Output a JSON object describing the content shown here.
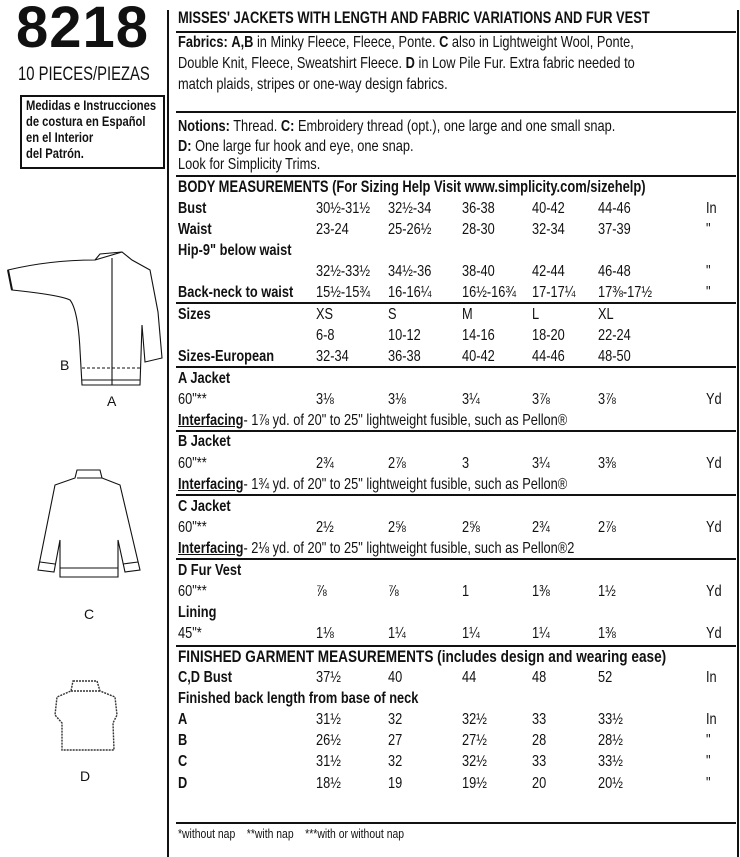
{
  "pattern_number": "8218",
  "pieces": "10 PIECES/PIEZAS",
  "spanish_note": [
    "Medidas e Instrucciones",
    "de costura en Español",
    "en el Interior",
    "del Patrón."
  ],
  "figure_labels": {
    "a": "A",
    "b": "B",
    "c": "C",
    "d": "D"
  },
  "title": "MISSES' JACKETS WITH LENGTH AND FABRIC VARIATIONS AND FUR VEST",
  "fabrics": {
    "label": "Fabrics:",
    "line1_b1": "A,B",
    "line1_t1": " in Minky Fleece, Fleece, Ponte. ",
    "line1_b2": "C",
    "line1_t2": " also in Lightweight Wool, Ponte,",
    "line2_t1": "Double Knit, Fleece, Sweatshirt Fleece. ",
    "line2_b1": "D",
    "line2_t2": " in Low Pile Fur. Extra fabric needed to",
    "line3": "match plaids, stripes or one-way design fabrics."
  },
  "notions": {
    "label": "Notions:",
    "t1": " Thread. ",
    "b1": "C:",
    "t2": " Embroidery thread (opt.), one large and one small snap.",
    "line2_b": "D:",
    "line2_t": " One large fur hook and eye, one snap.",
    "line3": "Look for Simplicity Trims."
  },
  "body_heading": "BODY MEASUREMENTS (For Sizing Help Visit www.simplicity.com/sizehelp)",
  "rows": [
    {
      "label": "Bust",
      "bold": true,
      "values": [
        "30½-31½",
        "32½-34",
        "36-38",
        "40-42",
        "44-46"
      ],
      "unit": "In"
    },
    {
      "label": "Waist",
      "bold": true,
      "values": [
        "23-24",
        "25-26½",
        "28-30",
        "32-34",
        "37-39"
      ],
      "unit": "\""
    },
    {
      "label": "Hip-9\" below waist",
      "bold": true,
      "values": [],
      "unit": ""
    },
    {
      "label": "",
      "bold": false,
      "values": [
        "32½-33½",
        "34½-36",
        "38-40",
        "42-44",
        "46-48"
      ],
      "unit": "\""
    },
    {
      "label": "Back-neck to waist",
      "bold": true,
      "values": [
        "15½-15¾",
        "16-16¼",
        "16½-16¾",
        "17-17¼",
        "17⅜-17½"
      ],
      "unit": "\""
    },
    {
      "label": "Sizes",
      "bold": true,
      "values": [
        "XS",
        "S",
        "M",
        "L",
        "XL"
      ],
      "unit": ""
    },
    {
      "label": "",
      "bold": false,
      "values": [
        "6-8",
        "10-12",
        "14-16",
        "18-20",
        "22-24"
      ],
      "unit": ""
    },
    {
      "label": "Sizes-European",
      "bold": true,
      "values": [
        "32-34",
        "36-38",
        "40-42",
        "44-46",
        "48-50"
      ],
      "unit": ""
    },
    {
      "label": "A Jacket",
      "bold": true,
      "values": [],
      "unit": ""
    },
    {
      "label": "60\"**",
      "bold": false,
      "values": [
        "3⅛",
        "3⅛",
        "3¼",
        "3⅞",
        "3⅞"
      ],
      "unit": "Yd"
    },
    {
      "label": "Interfacing",
      "bold": true,
      "note": "- 1⅞ yd. of 20\" to 25\" lightweight fusible, such as Pellon®",
      "values": [],
      "unit": ""
    },
    {
      "label": "B Jacket",
      "bold": true,
      "values": [],
      "unit": ""
    },
    {
      "label": "60\"**",
      "bold": false,
      "values": [
        "2¾",
        "2⅞",
        "3",
        "3¼",
        "3⅜"
      ],
      "unit": "Yd"
    },
    {
      "label": "Interfacing",
      "bold": true,
      "note": "- 1¾ yd. of 20\" to 25\" lightweight fusible, such as Pellon®",
      "values": [],
      "unit": ""
    },
    {
      "label": "C Jacket",
      "bold": true,
      "values": [],
      "unit": ""
    },
    {
      "label": "60\"**",
      "bold": false,
      "values": [
        "2½",
        "2⅝",
        "2⅝",
        "2¾",
        "2⅞"
      ],
      "unit": "Yd"
    },
    {
      "label": "Interfacing",
      "bold": true,
      "note": "- 2⅛ yd. of 20\" to 25\" lightweight fusible, such as Pellon®2",
      "values": [],
      "unit": ""
    },
    {
      "label": "D Fur Vest",
      "bold": true,
      "values": [],
      "unit": ""
    },
    {
      "label": "60\"**",
      "bold": false,
      "values": [
        "⅞",
        "⅞",
        "1",
        "1⅜",
        "1½"
      ],
      "unit": "Yd"
    },
    {
      "label": "Lining",
      "bold": true,
      "values": [],
      "unit": ""
    },
    {
      "label": "45\"*",
      "bold": false,
      "values": [
        "1⅛",
        "1¼",
        "1¼",
        "1¼",
        "1⅜"
      ],
      "unit": "Yd"
    },
    {
      "label": "FINISHED GARMENT MEASUREMENTS",
      "bold": true,
      "note": " (includes design and wearing ease)",
      "note_bold": true,
      "values": [],
      "unit": ""
    },
    {
      "label": "C,D Bust",
      "bold": true,
      "values": [
        "37½",
        "40",
        "44",
        "48",
        "52"
      ],
      "unit": "In"
    },
    {
      "label": "Finished back length from base of neck",
      "bold": true,
      "values": [],
      "unit": ""
    },
    {
      "label": "A",
      "bold": true,
      "values": [
        "31½",
        "32",
        "32½",
        "33",
        "33½"
      ],
      "unit": "In"
    },
    {
      "label": "B",
      "bold": true,
      "values": [
        "26½",
        "27",
        "27½",
        "28",
        "28½"
      ],
      "unit": "\""
    },
    {
      "label": "C",
      "bold": true,
      "values": [
        "31½",
        "32",
        "32½",
        "33",
        "33½"
      ],
      "unit": "\""
    },
    {
      "label": "D",
      "bold": true,
      "values": [
        "18½",
        "19",
        "19½",
        "20",
        "20½"
      ],
      "unit": "\""
    }
  ],
  "footnote": "*without nap    **with nap    ***with or without nap"
}
